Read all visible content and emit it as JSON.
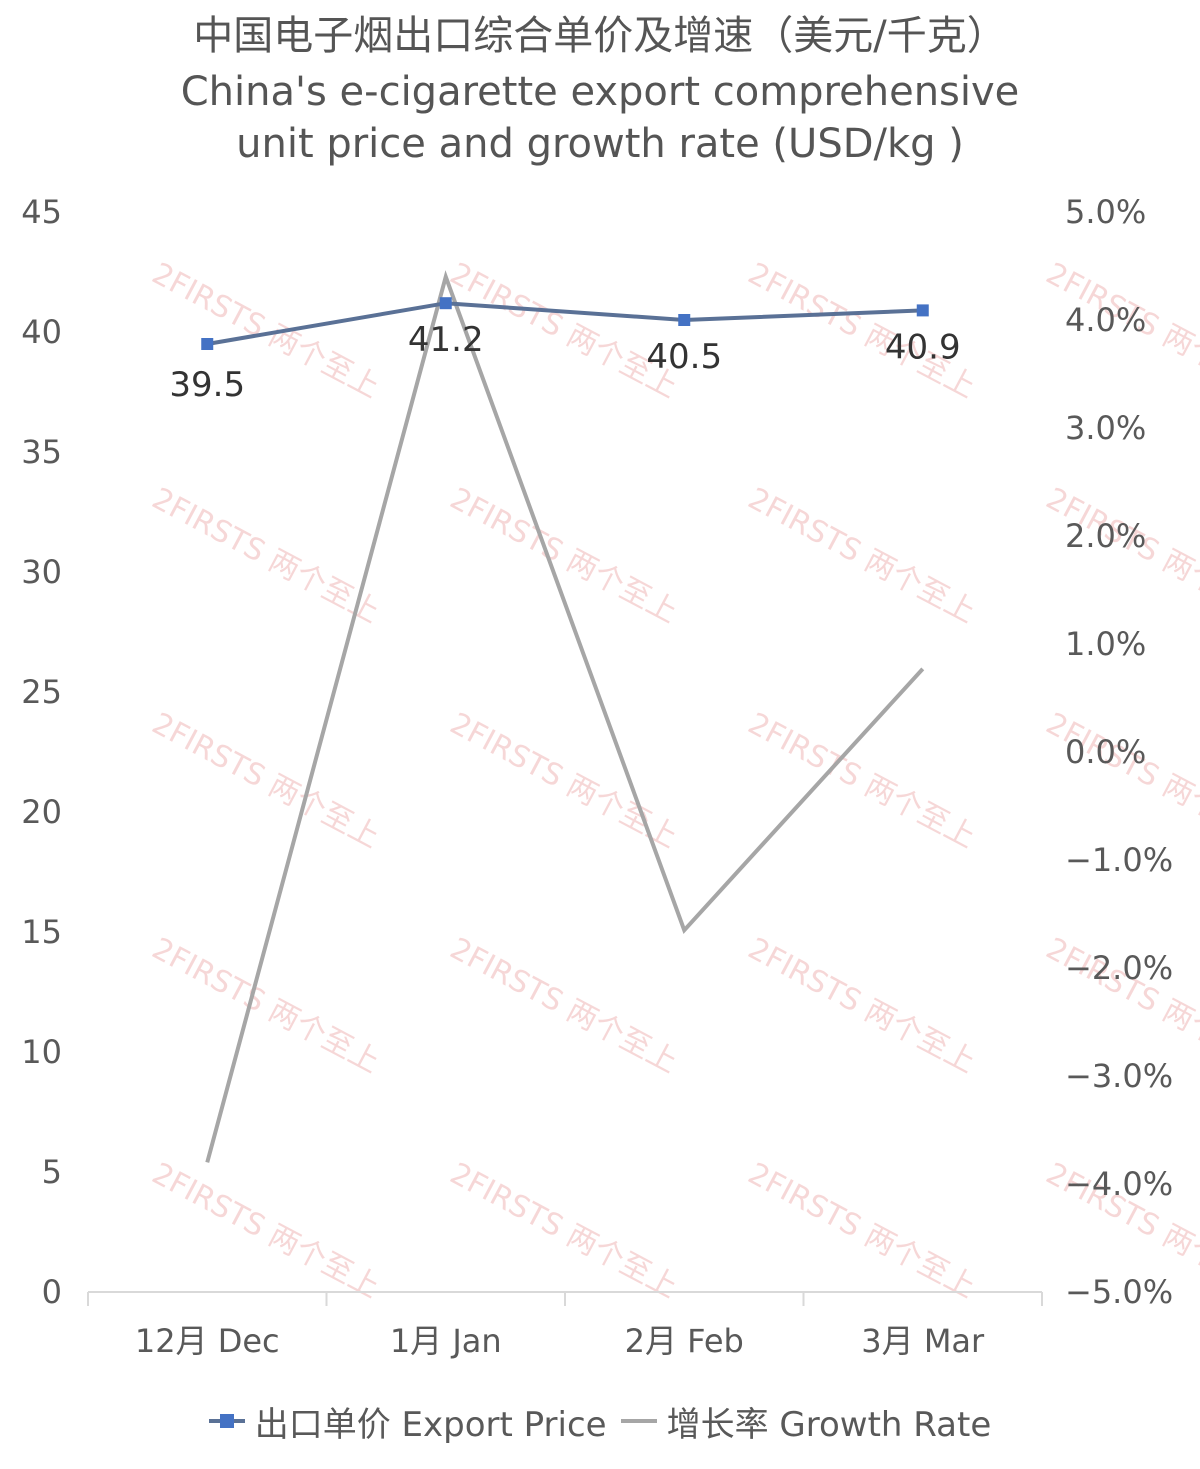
{
  "title_cn": "中国电子烟出口综合单价及增速（美元/千克）",
  "title_en_line1": "China's e-cigarette export comprehensive",
  "title_en_line2": "unit price and growth rate (USD/kg )",
  "watermark": "2FIRSTS 两个至上",
  "colors": {
    "price": "#5a7196",
    "price_marker": "#4472c4",
    "growth": "#a6a6a6"
  },
  "legend": {
    "price_label": "出口单价 Export Price",
    "growth_label": "增长率 Growth Rate"
  },
  "chart_data": {
    "type": "line",
    "title": "中国电子烟出口综合单价及增速（美元/千克） China's e-cigarette export comprehensive unit price and growth rate (USD/kg )",
    "categories": [
      "12月 Dec",
      "1月 Jan",
      "2月 Feb",
      "3月 Mar"
    ],
    "left_axis": {
      "ylim": [
        0,
        45
      ],
      "ticks": [
        "0",
        "5",
        "10",
        "15",
        "20",
        "25",
        "30",
        "35",
        "40",
        "45"
      ]
    },
    "right_axis": {
      "ylim": [
        -0.05,
        0.05
      ],
      "ticks": [
        "−5.0%",
        "−4.0%",
        "−3.0%",
        "−2.0%",
        "−1.0%",
        "0.0%",
        "1.0%",
        "2.0%",
        "3.0%",
        "4.0%",
        "5.0%"
      ]
    },
    "series": [
      {
        "name": "出口单价 Export Price",
        "axis": "left",
        "values": [
          39.5,
          41.2,
          40.5,
          40.9
        ],
        "data_labels": [
          "39.5",
          "41.2",
          "40.5",
          "40.9"
        ]
      },
      {
        "name": "增长率 Growth Rate",
        "axis": "right",
        "values": [
          -0.038,
          0.044,
          -0.0165,
          0.0077
        ]
      }
    ],
    "grid": false,
    "legend_position": "bottom"
  }
}
